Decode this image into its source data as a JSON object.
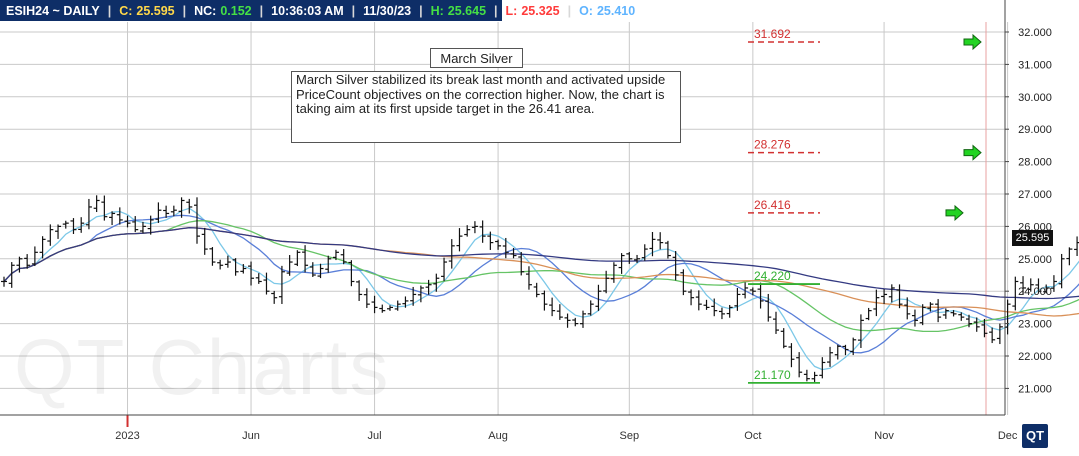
{
  "header": {
    "symbol": "ESIH24 ~ DAILY",
    "close_label": "C:",
    "close": "25.595",
    "nc_label": "NC:",
    "nc": "0.152",
    "time": "10:36:03 AM",
    "date": "11/30/23",
    "high_label": "H:",
    "high": "25.645",
    "low_label": "L:",
    "low": "25.325",
    "open_label": "O:",
    "open": "25.410",
    "separator": "|",
    "colors": {
      "close": "#ffd84a",
      "nc": "#45e045",
      "high": "#45e045",
      "low": "#ff3b3b",
      "open": "#5fb4ff",
      "bar": "#0e2e67"
    }
  },
  "annotation": {
    "title": "March Silver",
    "text": "March Silver stabilized its break last month and activated upside PriceCount objectives on the correction higher. Now, the chart is taking aim at its first upside target in the 26.41 area."
  },
  "watermark": "QT Charts",
  "logo": "QT",
  "last_price_tag": "25.595",
  "chart_data": {
    "type": "ohlc",
    "y_range": [
      20.5,
      32.5
    ],
    "grid": true,
    "y_ticks": [
      "32.000",
      "31.000",
      "30.000",
      "29.000",
      "28.000",
      "27.000",
      "26.000",
      "25.000",
      "24.000",
      "23.000",
      "22.000",
      "21.000"
    ],
    "x_ticks": [
      {
        "label": "2023",
        "i": 16,
        "color": "#cc2222"
      },
      {
        "label": "Jun",
        "i": 32
      },
      {
        "label": "Jul",
        "i": 48
      },
      {
        "label": "Aug",
        "i": 64
      },
      {
        "label": "Sep",
        "i": 81
      },
      {
        "label": "Oct",
        "i": 97
      },
      {
        "label": "Nov",
        "i": 114
      },
      {
        "label": "Dec",
        "i": 130
      }
    ],
    "closes": [
      24.3,
      24.8,
      25.0,
      24.8,
      25.2,
      25.6,
      25.9,
      26.0,
      26.1,
      25.9,
      26.1,
      26.6,
      26.8,
      26.3,
      26.4,
      26.2,
      26.1,
      25.9,
      26.0,
      26.2,
      26.5,
      26.4,
      26.5,
      26.8,
      26.6,
      25.7,
      25.3,
      24.9,
      24.8,
      24.9,
      24.6,
      24.7,
      24.4,
      24.3,
      24.0,
      23.8,
      24.6,
      24.9,
      25.2,
      24.8,
      24.5,
      24.7,
      25.0,
      25.2,
      24.9,
      24.3,
      23.9,
      23.6,
      23.5,
      23.4,
      23.5,
      23.6,
      23.7,
      23.9,
      24.1,
      24.2,
      24.4,
      24.9,
      25.4,
      25.7,
      25.9,
      26.0,
      25.7,
      25.5,
      25.4,
      25.2,
      25.1,
      24.6,
      24.2,
      23.9,
      23.6,
      23.4,
      23.2,
      23.1,
      23.0,
      23.3,
      23.6,
      24.0,
      24.4,
      24.8,
      25.1,
      25.0,
      25.0,
      25.3,
      25.6,
      25.5,
      25.1,
      24.5,
      24.0,
      23.8,
      23.6,
      23.5,
      23.4,
      23.3,
      23.5,
      23.9,
      24.1,
      24.0,
      23.7,
      23.2,
      22.8,
      22.3,
      21.9,
      21.5,
      21.3,
      21.4,
      21.8,
      22.1,
      22.3,
      22.2,
      22.5,
      23.1,
      23.4,
      23.8,
      23.9,
      24.1,
      23.6,
      23.3,
      23.1,
      23.5,
      23.6,
      23.2,
      23.4,
      23.3,
      23.2,
      23.0,
      22.9,
      22.7,
      22.5,
      22.9,
      23.6,
      24.3,
      24.1,
      24.2,
      24.0,
      24.1,
      24.3,
      25.0,
      25.3,
      25.5,
      25.6
    ],
    "price_levels": [
      {
        "value": 31.692,
        "label": "31.692",
        "color": "#d23030",
        "side": "upside"
      },
      {
        "value": 28.276,
        "label": "28.276",
        "color": "#d23030",
        "side": "upside"
      },
      {
        "value": 26.416,
        "label": "26.416",
        "color": "#d23030",
        "side": "upside"
      },
      {
        "value": 24.22,
        "label": "24.220",
        "color": "#32b032",
        "side": "downside"
      },
      {
        "value": 21.17,
        "label": "21.170",
        "color": "#32b032",
        "side": "downside"
      }
    ],
    "target_arrows": [
      31.692,
      28.276,
      26.416
    ],
    "series": [
      {
        "period": 5,
        "color": "#7cc8e8"
      },
      {
        "period": 12,
        "color": "#5a7fd8"
      },
      {
        "period": 22,
        "color": "#66c466"
      },
      {
        "period": 50,
        "color": "#d99058"
      },
      {
        "period": 90,
        "color": "#343a82"
      }
    ],
    "bar_color": "#111111",
    "vertical_marker_color": "#d23030"
  }
}
